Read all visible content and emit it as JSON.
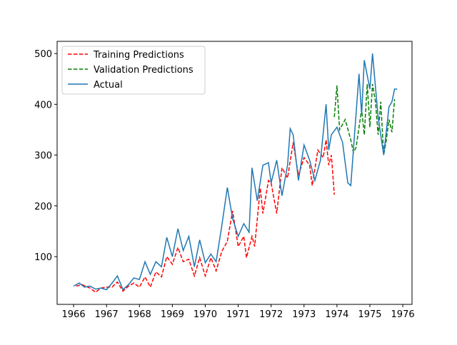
{
  "chart_data": {
    "type": "line",
    "xlim": [
      1965.5,
      1976.28
    ],
    "ylim": [
      6,
      524
    ],
    "xticks": [
      1966,
      1967,
      1968,
      1969,
      1970,
      1971,
      1972,
      1973,
      1974,
      1975,
      1976
    ],
    "yticks": [
      100,
      200,
      300,
      400,
      500
    ],
    "legend": "upper left",
    "grid": false,
    "series": [
      {
        "name": "Training Predictions",
        "color": "#ff0000",
        "dash": true,
        "x": [
          1966.08,
          1966.25,
          1966.5,
          1966.67,
          1966.83,
          1967.0,
          1967.17,
          1967.33,
          1967.5,
          1967.67,
          1967.83,
          1968.0,
          1968.17,
          1968.33,
          1968.5,
          1968.67,
          1968.83,
          1969.0,
          1969.17,
          1969.33,
          1969.5,
          1969.67,
          1969.83,
          1970.0,
          1970.17,
          1970.33,
          1970.5,
          1970.67,
          1970.83,
          1971.0,
          1971.17,
          1971.25,
          1971.42,
          1971.5,
          1971.67,
          1971.75,
          1971.92,
          1972.0,
          1972.17,
          1972.33,
          1972.5,
          1972.67,
          1972.83,
          1973.0,
          1973.17,
          1973.25,
          1973.42,
          1973.58,
          1973.67,
          1973.75,
          1973.83,
          1973.92
        ],
        "values": [
          42,
          45,
          38,
          30,
          38,
          40,
          40,
          50,
          32,
          42,
          48,
          40,
          60,
          40,
          70,
          60,
          100,
          85,
          118,
          90,
          95,
          62,
          98,
          62,
          98,
          72,
          110,
          130,
          190,
          120,
          140,
          98,
          140,
          120,
          235,
          185,
          250,
          245,
          185,
          275,
          255,
          325,
          260,
          295,
          280,
          240,
          310,
          295,
          330,
          280,
          300,
          222
        ]
      },
      {
        "name": "Validation Predictions",
        "color": "#008000",
        "dash": true,
        "x": [
          1973.92,
          1974.0,
          1974.08,
          1974.25,
          1974.42,
          1974.5,
          1974.58,
          1974.75,
          1974.83,
          1974.92,
          1975.0,
          1975.08,
          1975.17,
          1975.25,
          1975.33,
          1975.42,
          1975.5,
          1975.58,
          1975.67,
          1975.75
        ],
        "values": [
          375,
          437,
          350,
          370,
          330,
          305,
          315,
          390,
          340,
          440,
          355,
          440,
          405,
          340,
          405,
          300,
          330,
          370,
          345,
          410
        ]
      },
      {
        "name": "Actual",
        "color": "#1f77b4",
        "dash": false,
        "x": [
          1966.0,
          1966.17,
          1966.33,
          1966.5,
          1966.67,
          1966.83,
          1967.0,
          1967.17,
          1967.33,
          1967.5,
          1967.67,
          1967.83,
          1968.0,
          1968.17,
          1968.33,
          1968.5,
          1968.67,
          1968.83,
          1969.0,
          1969.17,
          1969.33,
          1969.5,
          1969.67,
          1969.83,
          1970.0,
          1970.17,
          1970.33,
          1970.5,
          1970.67,
          1970.83,
          1971.0,
          1971.17,
          1971.33,
          1971.42,
          1971.58,
          1971.75,
          1971.92,
          1972.0,
          1972.17,
          1972.33,
          1972.5,
          1972.58,
          1972.67,
          1972.83,
          1973.0,
          1973.17,
          1973.33,
          1973.5,
          1973.67,
          1973.75,
          1973.83,
          1974.0,
          1974.17,
          1974.33,
          1974.42,
          1974.67,
          1974.75,
          1974.83,
          1975.0,
          1975.08,
          1975.25,
          1975.42,
          1975.58,
          1975.67,
          1975.75,
          1975.83
        ],
        "values": [
          42,
          48,
          40,
          42,
          36,
          38,
          35,
          48,
          62,
          35,
          45,
          58,
          55,
          90,
          65,
          90,
          80,
          138,
          100,
          155,
          112,
          140,
          80,
          133,
          88,
          105,
          90,
          160,
          236,
          175,
          140,
          165,
          148,
          275,
          210,
          280,
          285,
          245,
          290,
          220,
          280,
          352,
          340,
          250,
          320,
          290,
          250,
          290,
          400,
          310,
          340,
          355,
          325,
          245,
          240,
          460,
          380,
          487,
          430,
          500,
          375,
          300,
          395,
          405,
          430,
          430
        ]
      }
    ]
  }
}
